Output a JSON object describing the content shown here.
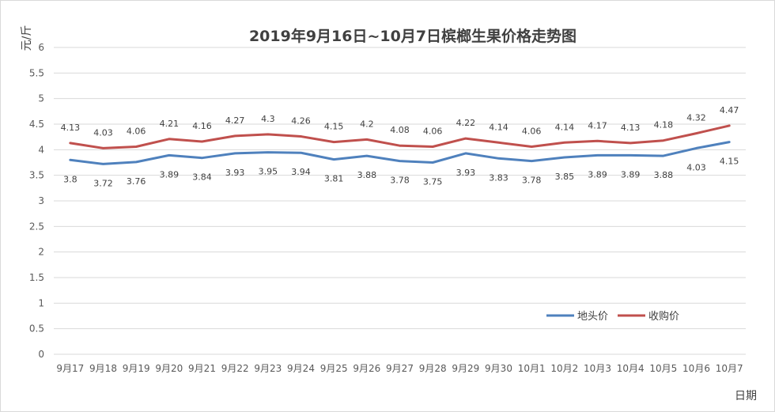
{
  "chart_data": {
    "type": "line",
    "title": "2019年9月16日~10月7日槟榔生果价格走势图",
    "xlabel": "日期",
    "ylabel": "元/斤",
    "ylim": [
      0,
      6
    ],
    "yticks": [
      "0",
      "0.5",
      "1",
      "1.5",
      "2",
      "2.5",
      "3",
      "3.5",
      "4",
      "4.5",
      "5",
      "5.5",
      "6"
    ],
    "categories": [
      "9月17",
      "9月18",
      "9月19",
      "9月20",
      "9月21",
      "9月22",
      "9月23",
      "9月24",
      "9月25",
      "9月26",
      "9月27",
      "9月28",
      "9月29",
      "9月30",
      "10月1",
      "10月2",
      "10月3",
      "10月4",
      "10月5",
      "10月6",
      "10月7"
    ],
    "grid": true,
    "legend_position": "bottom-right",
    "series": [
      {
        "name": "地头价",
        "color": "#4f81bd",
        "values": [
          3.8,
          3.72,
          3.76,
          3.89,
          3.84,
          3.93,
          3.95,
          3.94,
          3.81,
          3.88,
          3.78,
          3.75,
          3.93,
          3.83,
          3.78,
          3.85,
          3.89,
          3.89,
          3.88,
          4.03,
          4.15
        ]
      },
      {
        "name": "收购价",
        "color": "#c0504d",
        "values": [
          4.13,
          4.03,
          4.06,
          4.21,
          4.16,
          4.27,
          4.3,
          4.26,
          4.15,
          4.2,
          4.08,
          4.06,
          4.22,
          4.14,
          4.06,
          4.14,
          4.17,
          4.13,
          4.18,
          4.32,
          4.47
        ]
      }
    ]
  }
}
